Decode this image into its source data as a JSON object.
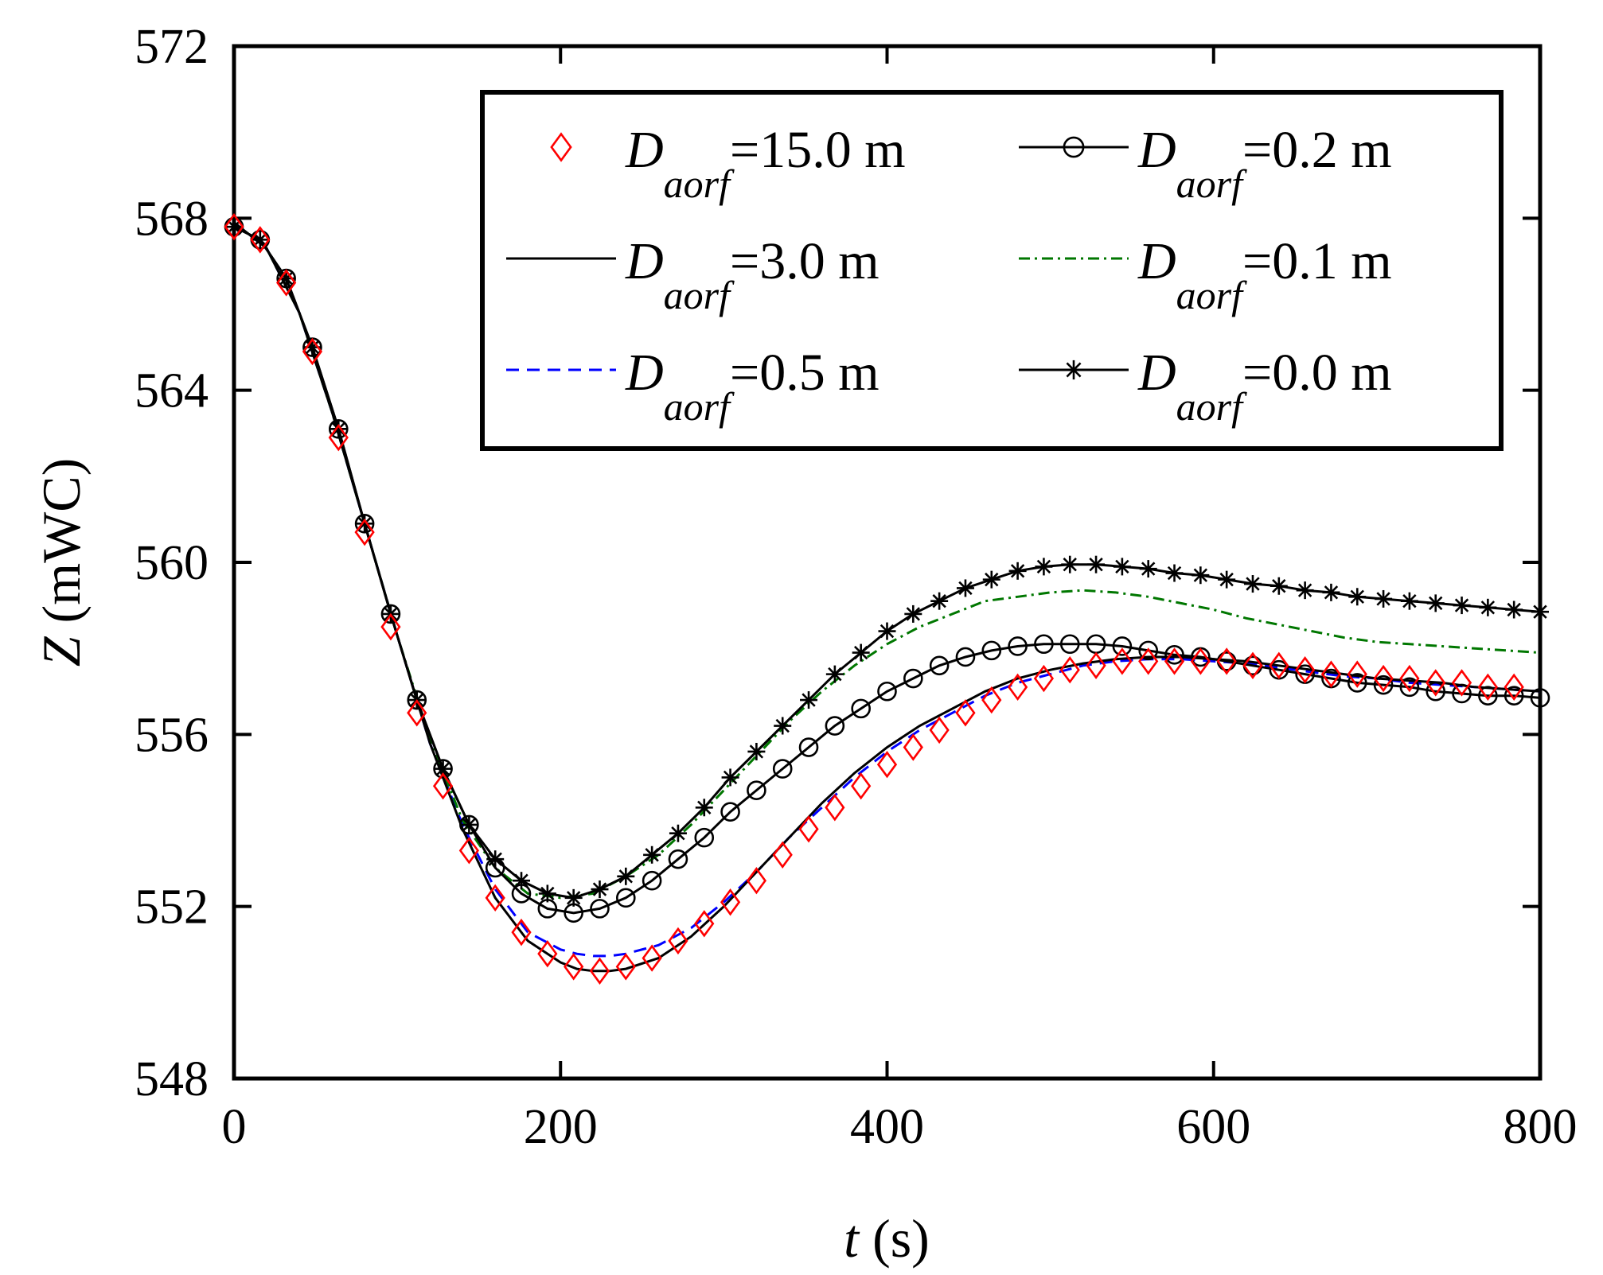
{
  "chart_data": {
    "type": "line",
    "title": "",
    "xlabel": {
      "var": "t",
      "unit": " (s)"
    },
    "ylabel": {
      "var": "Z",
      "unit": " (mWC)"
    },
    "xlim": [
      0,
      800
    ],
    "ylim": [
      548,
      572
    ],
    "xticks": [
      0,
      200,
      400,
      600,
      800
    ],
    "yticks": [
      548,
      552,
      556,
      560,
      564,
      568,
      572
    ],
    "xtick_labels": [
      "0",
      "200",
      "400",
      "600",
      "800"
    ],
    "ytick_labels": [
      "548",
      "552",
      "556",
      "560",
      "564",
      "568",
      "572"
    ],
    "grid": false,
    "legend": {
      "placement": "top-right",
      "columns": 2
    },
    "series": [
      {
        "id": "d15",
        "name": {
          "var": "D",
          "sub": "aorf",
          "value": "=15.0 m"
        },
        "color": "#ff0000",
        "style": "markers",
        "marker": "diamond",
        "x": [
          0,
          16,
          32,
          48,
          64,
          80,
          96,
          112,
          128,
          144,
          160,
          176,
          192,
          208,
          224,
          240,
          256,
          272,
          288,
          304,
          320,
          336,
          352,
          368,
          384,
          400,
          416,
          432,
          448,
          464,
          480,
          496,
          512,
          528,
          544,
          560,
          576,
          592,
          608,
          624,
          640,
          656,
          672,
          688,
          704,
          720,
          736,
          752,
          768,
          784
        ],
        "y": [
          567.8,
          567.5,
          566.5,
          564.9,
          562.9,
          560.7,
          558.5,
          556.5,
          554.8,
          553.3,
          552.2,
          551.4,
          550.9,
          550.6,
          550.5,
          550.6,
          550.8,
          551.2,
          551.6,
          552.1,
          552.6,
          553.2,
          553.8,
          554.3,
          554.8,
          555.3,
          555.7,
          556.1,
          556.5,
          556.8,
          557.1,
          557.3,
          557.5,
          557.6,
          557.7,
          557.7,
          557.7,
          557.7,
          557.7,
          557.6,
          557.6,
          557.5,
          557.4,
          557.4,
          557.3,
          557.3,
          557.2,
          557.2,
          557.1,
          557.1
        ]
      },
      {
        "id": "d3",
        "name": {
          "var": "D",
          "sub": "aorf",
          "value": "=3.0 m"
        },
        "color": "#000000",
        "style": "solid",
        "x": [
          0,
          20,
          40,
          60,
          80,
          100,
          120,
          140,
          160,
          180,
          200,
          210,
          220,
          230,
          240,
          260,
          280,
          300,
          320,
          340,
          360,
          380,
          400,
          420,
          440,
          460,
          480,
          500,
          520,
          540,
          560,
          580,
          600,
          620,
          640,
          660,
          680,
          700,
          720,
          740,
          760,
          780,
          800
        ],
        "y": [
          567.9,
          567.3,
          565.8,
          563.5,
          560.9,
          558.3,
          555.8,
          553.8,
          552.2,
          551.2,
          550.7,
          550.55,
          550.5,
          550.5,
          550.55,
          550.8,
          551.3,
          552.0,
          552.8,
          553.6,
          554.4,
          555.1,
          555.7,
          556.2,
          556.6,
          557.0,
          557.3,
          557.5,
          557.65,
          557.75,
          557.8,
          557.8,
          557.75,
          557.7,
          557.6,
          557.5,
          557.4,
          557.3,
          557.25,
          557.2,
          557.1,
          557.05,
          557.0
        ]
      },
      {
        "id": "d05",
        "name": {
          "var": "D",
          "sub": "aorf",
          "value": "=0.5 m"
        },
        "color": "#0000ff",
        "style": "dashed",
        "x": [
          0,
          20,
          40,
          60,
          80,
          100,
          120,
          140,
          160,
          180,
          200,
          210,
          220,
          230,
          240,
          260,
          280,
          300,
          320,
          340,
          360,
          380,
          400,
          420,
          440,
          460,
          480,
          500,
          520,
          540,
          560,
          580,
          600,
          620,
          640,
          660,
          680,
          700,
          720,
          740,
          760,
          780,
          800
        ],
        "y": [
          567.9,
          567.3,
          565.8,
          563.5,
          560.9,
          558.3,
          555.8,
          553.9,
          552.4,
          551.4,
          551.0,
          550.9,
          550.85,
          550.85,
          550.9,
          551.1,
          551.5,
          552.1,
          552.8,
          553.6,
          554.3,
          555.0,
          555.6,
          556.1,
          556.5,
          556.9,
          557.2,
          557.4,
          557.6,
          557.7,
          557.75,
          557.75,
          557.7,
          557.65,
          557.55,
          557.45,
          557.35,
          557.3,
          557.2,
          557.15,
          557.1,
          557.05,
          557.0
        ]
      },
      {
        "id": "d02",
        "name": {
          "var": "D",
          "sub": "aorf",
          "value": "=0.2 m"
        },
        "color": "#000000",
        "style": "solid",
        "marker": "circle",
        "x": [
          0,
          16,
          32,
          48,
          64,
          80,
          96,
          112,
          128,
          144,
          160,
          176,
          192,
          208,
          224,
          240,
          256,
          272,
          288,
          304,
          320,
          336,
          352,
          368,
          384,
          400,
          416,
          432,
          448,
          464,
          480,
          496,
          512,
          528,
          544,
          560,
          576,
          592,
          608,
          624,
          640,
          656,
          672,
          688,
          704,
          720,
          736,
          752,
          768,
          784,
          800
        ],
        "y": [
          567.8,
          567.5,
          566.6,
          565.0,
          563.1,
          560.9,
          558.8,
          556.8,
          555.2,
          553.9,
          552.9,
          552.3,
          551.95,
          551.85,
          551.95,
          552.2,
          552.6,
          553.1,
          553.6,
          554.2,
          554.7,
          555.2,
          555.7,
          556.2,
          556.6,
          557.0,
          557.3,
          557.6,
          557.8,
          557.95,
          558.05,
          558.1,
          558.1,
          558.1,
          558.05,
          557.95,
          557.85,
          557.8,
          557.7,
          557.6,
          557.5,
          557.4,
          557.3,
          557.2,
          557.15,
          557.1,
          557.0,
          556.95,
          556.9,
          556.9,
          556.85
        ]
      },
      {
        "id": "d01",
        "name": {
          "var": "D",
          "sub": "aorf",
          "value": "=0.1 m"
        },
        "color": "#007700",
        "style": "dashdot",
        "x": [
          0,
          20,
          40,
          60,
          80,
          100,
          120,
          140,
          160,
          180,
          200,
          220,
          240,
          260,
          280,
          300,
          320,
          340,
          360,
          380,
          400,
          420,
          440,
          460,
          480,
          500,
          520,
          540,
          560,
          580,
          600,
          620,
          640,
          660,
          680,
          700,
          720,
          740,
          760,
          780,
          800
        ],
        "y": [
          567.9,
          567.3,
          565.8,
          563.5,
          560.9,
          558.3,
          555.9,
          554.0,
          552.9,
          552.3,
          552.2,
          552.3,
          552.7,
          553.2,
          553.9,
          554.7,
          555.5,
          556.3,
          557.0,
          557.6,
          558.1,
          558.5,
          558.8,
          559.1,
          559.2,
          559.3,
          559.35,
          559.3,
          559.2,
          559.05,
          558.9,
          558.7,
          558.55,
          558.4,
          558.25,
          558.15,
          558.1,
          558.05,
          558.0,
          557.95,
          557.9
        ]
      },
      {
        "id": "d00",
        "name": {
          "var": "D",
          "sub": "aorf",
          "value": "=0.0 m"
        },
        "color": "#000000",
        "style": "solid",
        "marker": "asterisk",
        "x": [
          0,
          16,
          32,
          48,
          64,
          80,
          96,
          112,
          128,
          144,
          160,
          176,
          192,
          208,
          224,
          240,
          256,
          272,
          288,
          304,
          320,
          336,
          352,
          368,
          384,
          400,
          416,
          432,
          448,
          464,
          480,
          496,
          512,
          528,
          544,
          560,
          576,
          592,
          608,
          624,
          640,
          656,
          672,
          688,
          704,
          720,
          736,
          752,
          768,
          784,
          800
        ],
        "y": [
          567.8,
          567.5,
          566.6,
          565.0,
          563.1,
          560.9,
          558.8,
          556.8,
          555.2,
          553.9,
          553.1,
          552.6,
          552.3,
          552.2,
          552.4,
          552.7,
          553.2,
          553.7,
          554.3,
          555.0,
          555.6,
          556.2,
          556.8,
          557.4,
          557.9,
          558.4,
          558.8,
          559.1,
          559.4,
          559.6,
          559.8,
          559.9,
          559.95,
          559.95,
          559.9,
          559.85,
          559.75,
          559.7,
          559.6,
          559.5,
          559.45,
          559.35,
          559.3,
          559.2,
          559.15,
          559.1,
          559.05,
          559.0,
          558.95,
          558.9,
          558.85
        ]
      }
    ],
    "legend_order": [
      "d15",
      "d02",
      "d3",
      "d01",
      "d05",
      "d00"
    ]
  }
}
